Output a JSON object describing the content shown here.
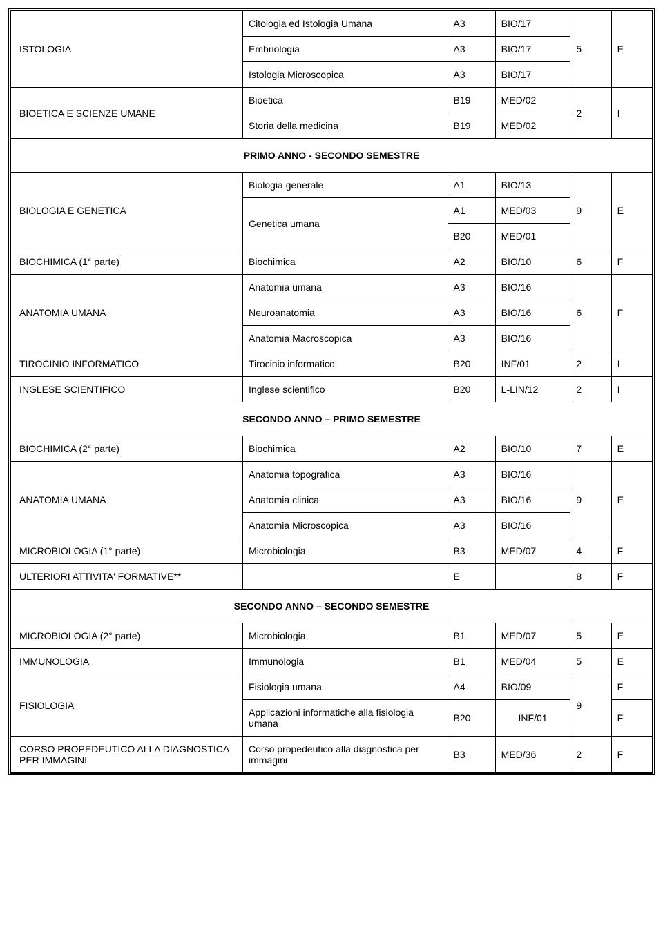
{
  "sections": [
    {
      "header": null,
      "rows": [
        {
          "left": "ISTOLOGIA",
          "leftRowspan": 3,
          "sub": "Citologia ed Istologia Umana",
          "c1": "A3",
          "c2": "BIO/17",
          "num": "5",
          "numRowspan": 3,
          "let": "E",
          "letRowspan": 3
        },
        {
          "sub": "Embriologia",
          "c1": "A3",
          "c2": "BIO/17"
        },
        {
          "sub": "Istologia Microscopica",
          "c1": "A3",
          "c2": "BIO/17"
        },
        {
          "left": "BIOETICA E SCIENZE UMANE",
          "leftRowspan": 2,
          "sub": "Bioetica",
          "c1": "B19",
          "c2": "MED/02",
          "num": "2",
          "numRowspan": 2,
          "let": "I",
          "letRowspan": 2
        },
        {
          "sub": "Storia della medicina",
          "c1": "B19",
          "c2": "MED/02"
        }
      ]
    },
    {
      "header": "PRIMO ANNO   -  SECONDO SEMESTRE",
      "rows": [
        {
          "left": "BIOLOGIA E GENETICA",
          "leftRowspan": 3,
          "sub": "Biologia generale",
          "c1": "A1",
          "c2": "BIO/13",
          "num": "9",
          "numRowspan": 3,
          "let": "E",
          "letRowspan": 3
        },
        {
          "sub": "Genetica umana",
          "subRowspan": 2,
          "c1": "A1",
          "c2": "MED/03"
        },
        {
          "c1": "B20",
          "c2": "MED/01"
        },
        {
          "left": "BIOCHIMICA (1° parte)",
          "sub": "Biochimica",
          "c1": "A2",
          "c2": "BIO/10",
          "num": "6",
          "let": "F"
        },
        {
          "left": "ANATOMIA UMANA",
          "leftRowspan": 3,
          "sub": "Anatomia umana",
          "c1": "A3",
          "c2": "BIO/16",
          "num": "6",
          "numRowspan": 3,
          "let": "F",
          "letRowspan": 3
        },
        {
          "sub": "Neuroanatomia",
          "c1": "A3",
          "c2": "BIO/16"
        },
        {
          "sub": "Anatomia Macroscopica",
          "c1": "A3",
          "c2": "BIO/16"
        },
        {
          "left": "TIROCINIO INFORMATICO",
          "sub": "Tirocinio informatico",
          "c1": "B20",
          "c2": "INF/01",
          "num": "2",
          "let": "I"
        },
        {
          "left": "INGLESE SCIENTIFICO",
          "sub": "Inglese scientifico",
          "c1": "B20",
          "c2": "L-LIN/12",
          "num": "2",
          "let": "I"
        }
      ]
    },
    {
      "header": "SECONDO ANNO – PRIMO SEMESTRE",
      "rows": [
        {
          "left": "BIOCHIMICA (2° parte)",
          "sub": "Biochimica",
          "c1": "A2",
          "c2": "BIO/10",
          "num": "7",
          "let": "E"
        },
        {
          "left": "ANATOMIA UMANA",
          "leftRowspan": 3,
          "sub": "Anatomia topografica",
          "c1": "A3",
          "c2": "BIO/16",
          "num": "9",
          "numRowspan": 3,
          "let": "E",
          "letRowspan": 3
        },
        {
          "sub": "Anatomia clinica",
          "c1": "A3",
          "c2": "BIO/16"
        },
        {
          "sub": "Anatomia Microscopica",
          "c1": "A3",
          "c2": "BIO/16"
        },
        {
          "left": "MICROBIOLOGIA (1° parte)",
          "sub": "Microbiologia",
          "c1": "B3",
          "c2": "MED/07",
          "num": "4",
          "let": "F"
        },
        {
          "left": "ULTERIORI ATTIVITA' FORMATIVE**",
          "sub": "",
          "c1": "E",
          "c2": "",
          "num": "8",
          "let": "F"
        }
      ]
    },
    {
      "header": "SECONDO ANNO – SECONDO  SEMESTRE",
      "rows": [
        {
          "left": "MICROBIOLOGIA (2° parte)",
          "sub": "Microbiologia",
          "c1": "B1",
          "c2": "MED/07",
          "num": "5",
          "let": "E"
        },
        {
          "left": "IMMUNOLOGIA",
          "sub": "Immunologia",
          "c1": "B1",
          "c2": "MED/04",
          "num": "5",
          "let": "E"
        },
        {
          "left": "FISIOLOGIA",
          "leftRowspan": 2,
          "sub": "Fisiologia umana",
          "c1": "A4",
          "c2": "BIO/09",
          "num": "9",
          "numRowspan": 2,
          "let": "F"
        },
        {
          "sub": "Applicazioni informatiche alla fisiologia umana",
          "c1": "B20",
          "c2": "INF/01",
          "c2Center": true,
          "let": "F"
        },
        {
          "left": "CORSO PROPEDEUTICO ALLA DIAGNOSTICA PER IMMAGINI",
          "sub": "Corso propedeutico alla diagnostica per immagini",
          "c1": "B3",
          "c2": "MED/36",
          "num": "2",
          "let": "F",
          "leftVtop": true
        }
      ]
    }
  ]
}
